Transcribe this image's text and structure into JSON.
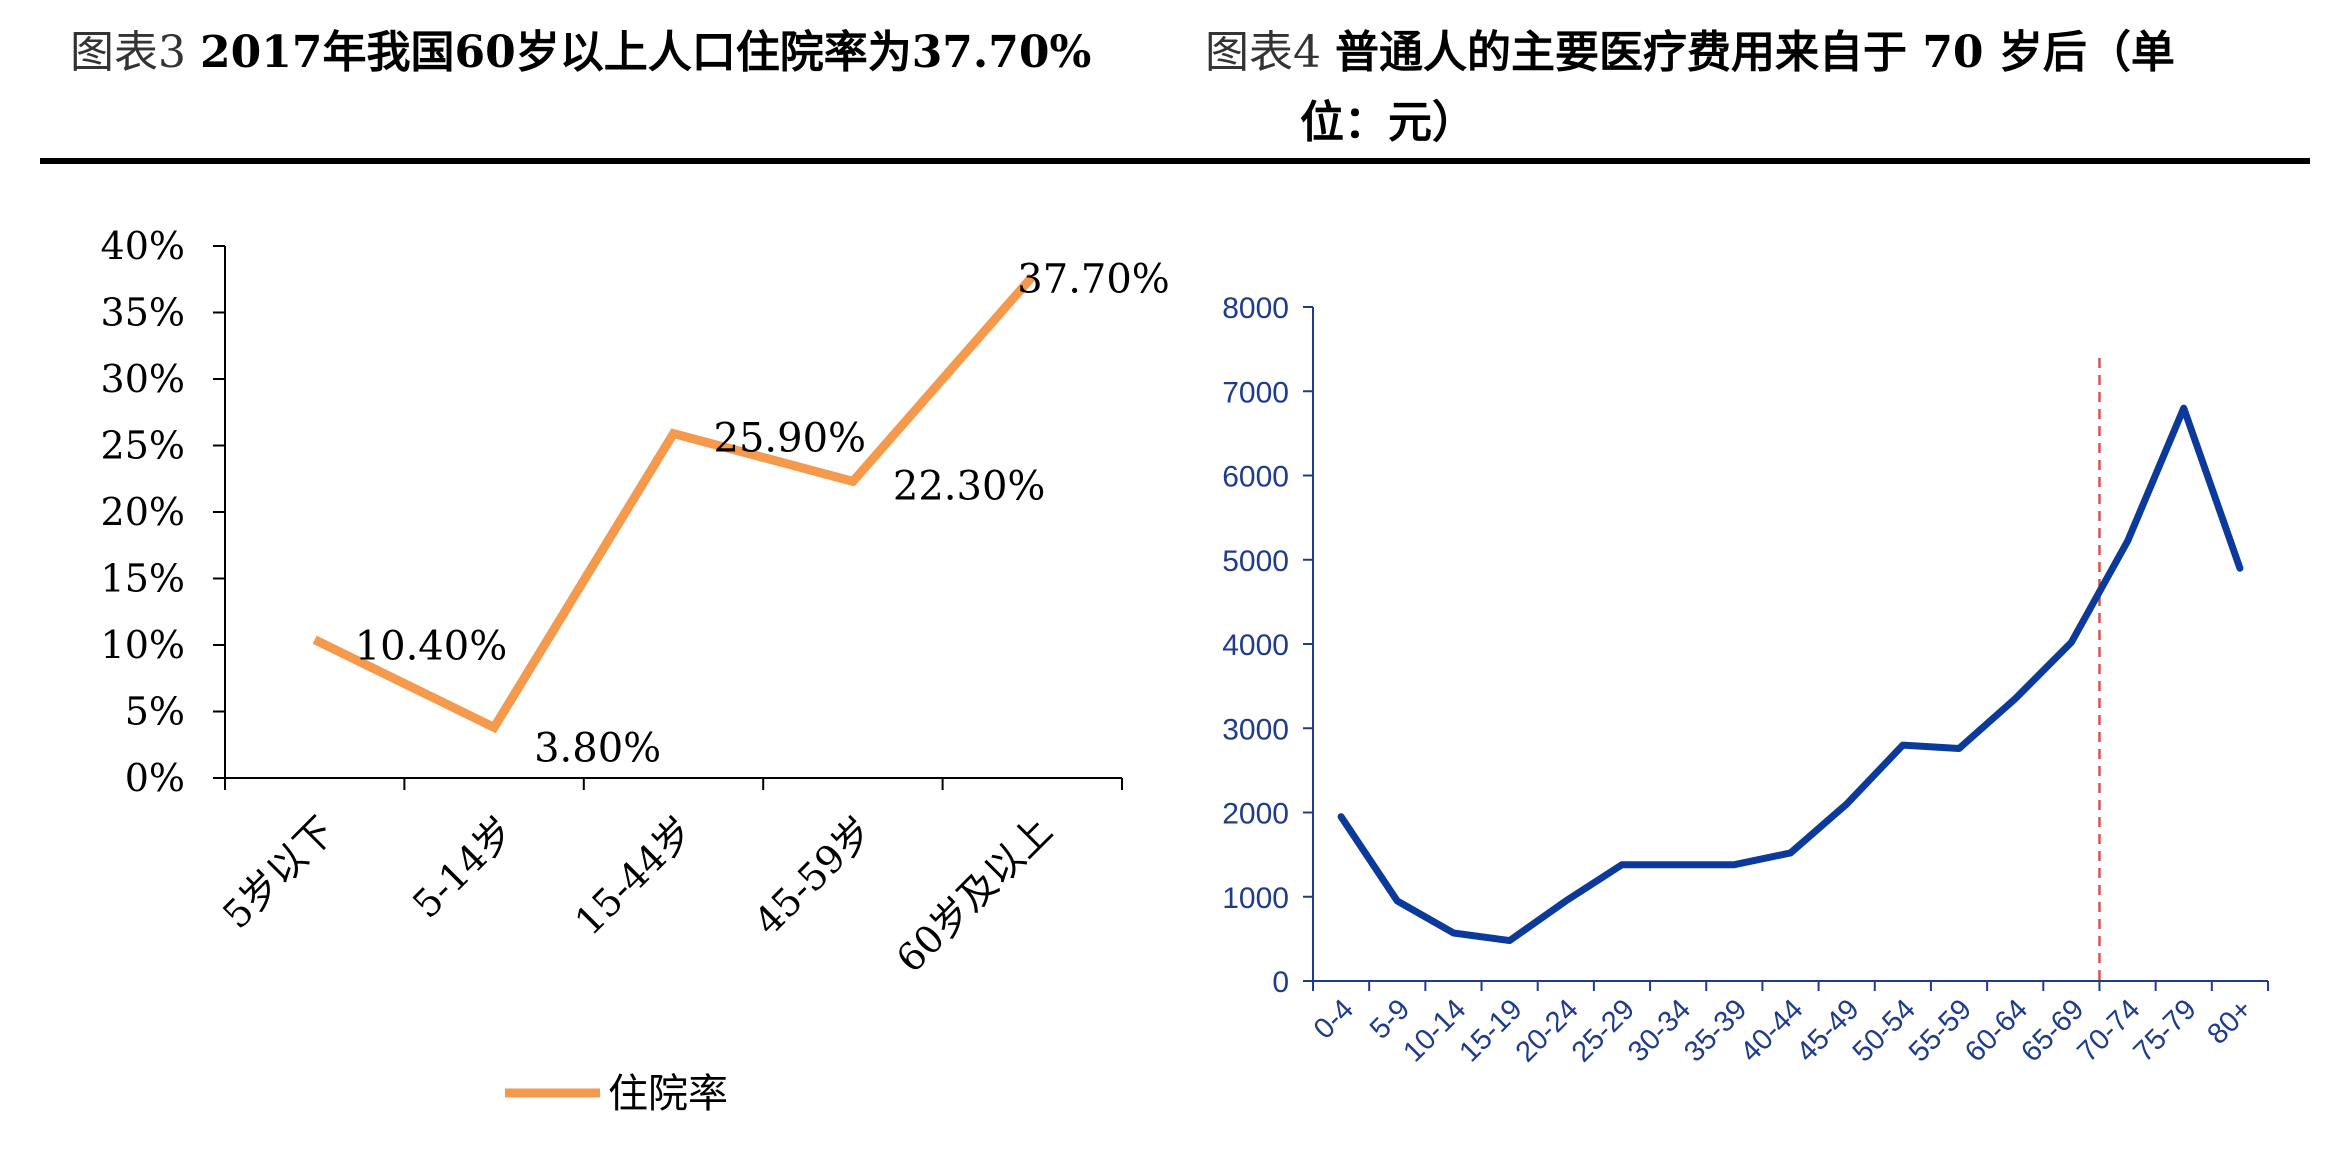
{
  "titles": {
    "left_fig": "图表3",
    "left_text": "2017年我国60岁以上人口住院率为37.70%",
    "right_fig": "图表4",
    "right_text_line1": "普通人的主要医疗费用来自于 70 岁后（单",
    "right_text_line2": "位：元）"
  },
  "chart_data": [
    {
      "type": "line",
      "categories": [
        "5岁以下",
        "5-14岁",
        "15-44岁",
        "45-59岁",
        "60岁及以上"
      ],
      "series": [
        {
          "name": "住院率",
          "values": [
            10.4,
            3.8,
            25.9,
            22.3,
            37.7
          ],
          "color": "#f59a4c"
        }
      ],
      "data_labels": [
        "10.40%",
        "3.80%",
        "25.90%",
        "22.30%",
        "37.70%"
      ],
      "y_ticks": [
        "0%",
        "5%",
        "10%",
        "15%",
        "20%",
        "25%",
        "30%",
        "35%",
        "40%"
      ],
      "ylim": [
        0,
        40
      ],
      "legend": "bottom",
      "grid": false
    },
    {
      "type": "line",
      "categories": [
        "0-4",
        "5-9",
        "10-14",
        "15-19",
        "20-24",
        "25-29",
        "30-34",
        "35-39",
        "40-44",
        "45-49",
        "50-54",
        "55-59",
        "60-64",
        "65-69",
        "70-74",
        "75-79",
        "80+"
      ],
      "series": [
        {
          "values": [
            1950,
            950,
            570,
            480,
            950,
            1380,
            1380,
            1380,
            1520,
            2100,
            2800,
            2760,
            3350,
            4020,
            5220,
            6800,
            4900
          ],
          "color": "#0b3a9a"
        }
      ],
      "y_ticks": [
        "0",
        "1000",
        "2000",
        "3000",
        "4000",
        "5000",
        "6000",
        "7000",
        "8000"
      ],
      "ylim": [
        0,
        8000
      ],
      "reference_line": {
        "x_between": [
          "65-69",
          "70-74"
        ],
        "style": "dashed",
        "color": "#d9534f"
      },
      "grid": false
    }
  ]
}
